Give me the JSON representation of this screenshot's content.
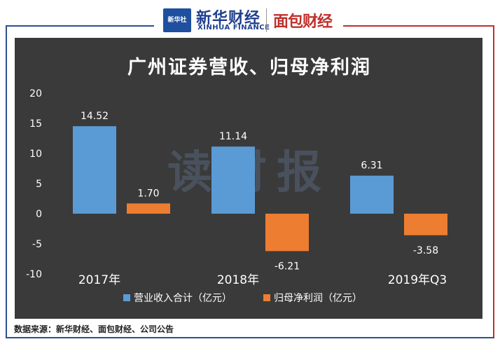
{
  "header": {
    "logo_box_text": "新华社",
    "logo_cn": "新华财经",
    "logo_en": "XINHUA FINANCE",
    "logo_mb": "面包财经"
  },
  "source_text": "数据来源：新华财经、面包财经、公司公告",
  "colors": {
    "chart_bg": "#3a3a3a",
    "series_revenue": "#5b9bd5",
    "series_profit": "#ed7d31",
    "frame_blue": "#2f4f8f",
    "frame_red": "#c0302b"
  },
  "chart_data": {
    "type": "bar",
    "title": "广州证券营收、归母净利润",
    "categories": [
      "2017年",
      "2018年",
      "2019年Q3"
    ],
    "series": [
      {
        "name": "营业收入合计（亿元）",
        "values": [
          14.52,
          11.14,
          6.31
        ],
        "labels": [
          "14.52",
          "11.14",
          "6.31"
        ]
      },
      {
        "name": "归母净利润（亿元）",
        "values": [
          1.7,
          -6.21,
          -3.58
        ],
        "labels": [
          "1.70",
          "-6.21",
          "-3.58"
        ]
      }
    ],
    "ylim": [
      -10,
      20
    ],
    "yticks": [
      20,
      15,
      10,
      5,
      0,
      -5,
      -10
    ],
    "watermark": "读财报",
    "legend_position": "bottom",
    "grid": false
  }
}
